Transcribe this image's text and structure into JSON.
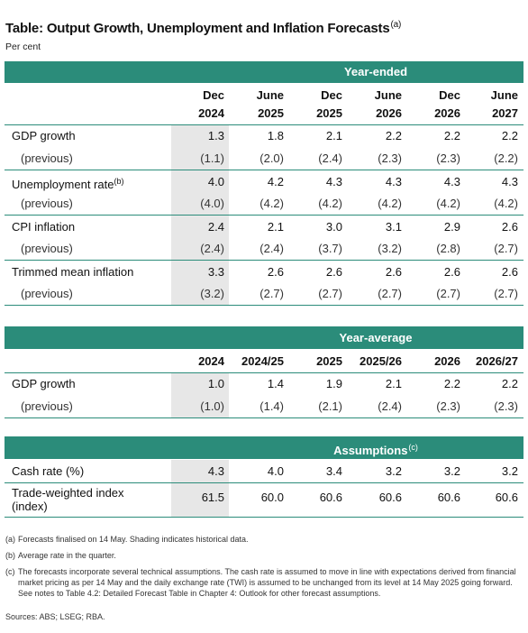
{
  "title": "Table: Output Growth, Unemployment and Inflation Forecasts",
  "title_note": "(a)",
  "subtitle": "Per cent",
  "accent_color": "#2b8c7a",
  "shade_color": "#e7e7e7",
  "year_ended": {
    "band_label": "Year-ended",
    "headers": [
      {
        "top": "Dec",
        "bottom": "2024"
      },
      {
        "top": "June",
        "bottom": "2025"
      },
      {
        "top": "Dec",
        "bottom": "2025"
      },
      {
        "top": "June",
        "bottom": "2026"
      },
      {
        "top": "Dec",
        "bottom": "2026"
      },
      {
        "top": "June",
        "bottom": "2027"
      }
    ],
    "rows": [
      {
        "label": "GDP growth",
        "values": [
          "1.3",
          "1.8",
          "2.1",
          "2.2",
          "2.2",
          "2.2"
        ]
      },
      {
        "label": "(previous)",
        "values": [
          "(1.1)",
          "(2.0)",
          "(2.4)",
          "(2.3)",
          "(2.3)",
          "(2.2)"
        ]
      },
      {
        "label": "Unemployment rate",
        "label_note": "(b)",
        "values": [
          "4.0",
          "4.2",
          "4.3",
          "4.3",
          "4.3",
          "4.3"
        ]
      },
      {
        "label": "(previous)",
        "values": [
          "(4.0)",
          "(4.2)",
          "(4.2)",
          "(4.2)",
          "(4.2)",
          "(4.2)"
        ]
      },
      {
        "label": "CPI inflation",
        "values": [
          "2.4",
          "2.1",
          "3.0",
          "3.1",
          "2.9",
          "2.6"
        ]
      },
      {
        "label": "(previous)",
        "values": [
          "(2.4)",
          "(2.4)",
          "(3.7)",
          "(3.2)",
          "(2.8)",
          "(2.7)"
        ]
      },
      {
        "label": "Trimmed mean inflation",
        "values": [
          "3.3",
          "2.6",
          "2.6",
          "2.6",
          "2.6",
          "2.6"
        ]
      },
      {
        "label": "(previous)",
        "values": [
          "(3.2)",
          "(2.7)",
          "(2.7)",
          "(2.7)",
          "(2.7)",
          "(2.7)"
        ]
      }
    ]
  },
  "year_average": {
    "band_label": "Year-average",
    "headers": [
      "2024",
      "2024/25",
      "2025",
      "2025/26",
      "2026",
      "2026/27"
    ],
    "rows": [
      {
        "label": "GDP growth",
        "values": [
          "1.0",
          "1.4",
          "1.9",
          "2.1",
          "2.2",
          "2.2"
        ]
      },
      {
        "label": "(previous)",
        "values": [
          "(1.0)",
          "(1.4)",
          "(2.1)",
          "(2.4)",
          "(2.3)",
          "(2.3)"
        ]
      }
    ]
  },
  "assumptions": {
    "band_label": "Assumptions",
    "band_note": "(c)",
    "rows": [
      {
        "label": "Cash rate (%)",
        "values": [
          "4.3",
          "4.0",
          "3.4",
          "3.2",
          "3.2",
          "3.2"
        ]
      },
      {
        "label": "Trade-weighted index",
        "label_line2": "(index)",
        "values": [
          "61.5",
          "60.0",
          "60.6",
          "60.6",
          "60.6",
          "60.6"
        ]
      }
    ]
  },
  "notes": [
    {
      "key": "(a)",
      "text": "Forecasts finalised on 14 May. Shading indicates historical data."
    },
    {
      "key": "(b)",
      "text": "Average rate in the quarter."
    },
    {
      "key": "(c)",
      "text": "The forecasts incorporate several technical assumptions. The cash rate is assumed to move in line with expectations derived from financial market pricing as per 14 May and the daily exchange rate (TWI) is assumed to be unchanged from its level at 14 May 2025 going forward. See notes to Table 4.2: Detailed Forecast Table in Chapter 4: Outlook for other forecast assumptions."
    }
  ],
  "sources": "Sources: ABS; LSEG; RBA."
}
